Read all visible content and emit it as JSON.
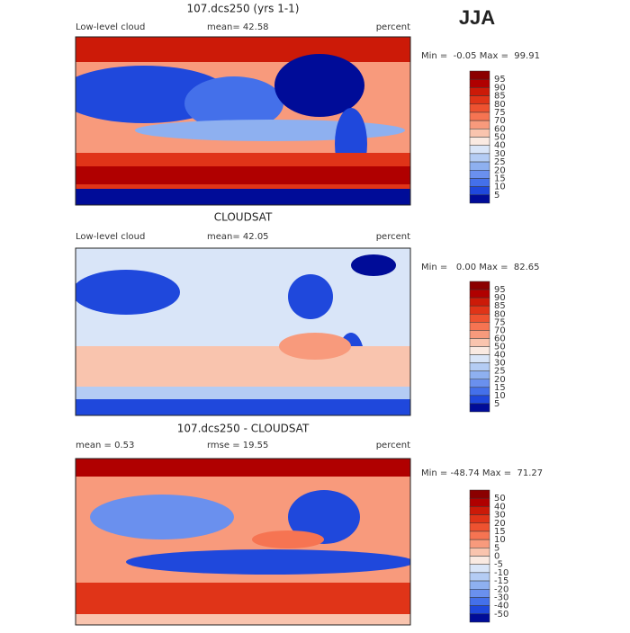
{
  "header": {
    "season": "JJA"
  },
  "panels": [
    {
      "title": "107.dcs250 (yrs 1-1)",
      "left_label": "Low-level cloud",
      "stat_label": "mean=  42.58",
      "units": "percent",
      "minmax": "Min =  -0.05 Max =  99.91",
      "colorbar": {
        "levels": [
          95,
          90,
          85,
          80,
          75,
          70,
          60,
          50,
          40,
          30,
          25,
          20,
          15,
          10,
          5
        ],
        "colors": [
          "#8b0000",
          "#b00000",
          "#cc1a08",
          "#e03418",
          "#ee5230",
          "#f67452",
          "#f89a7c",
          "#f9c4ae",
          "#faeae2",
          "#d9e5f8",
          "#b4ccf4",
          "#8eb0f0",
          "#6a90ee",
          "#4470ea",
          "#1f48dc",
          "#000c98"
        ]
      }
    },
    {
      "title": "CLOUDSAT",
      "left_label": "Low-level cloud",
      "stat_label": "mean=  42.05",
      "units": "percent",
      "minmax": "Min =   0.00 Max =  82.65",
      "colorbar": {
        "levels": [
          95,
          90,
          85,
          80,
          75,
          70,
          60,
          50,
          40,
          30,
          25,
          20,
          15,
          10,
          5
        ],
        "colors": [
          "#8b0000",
          "#b00000",
          "#cc1a08",
          "#e03418",
          "#ee5230",
          "#f67452",
          "#f89a7c",
          "#f9c4ae",
          "#faeae2",
          "#d9e5f8",
          "#b4ccf4",
          "#8eb0f0",
          "#6a90ee",
          "#4470ea",
          "#1f48dc",
          "#000c98"
        ]
      }
    },
    {
      "title": "107.dcs250 - CLOUDSAT",
      "left_label": "mean =   0.53",
      "stat_label": "rmse =  19.55",
      "units": "percent",
      "minmax": "Min = -48.74 Max =  71.27",
      "colorbar": {
        "levels": [
          50,
          40,
          30,
          20,
          15,
          10,
          5,
          0,
          -5,
          -10,
          -15,
          -20,
          -30,
          -40,
          -50
        ],
        "colors": [
          "#8b0000",
          "#b00000",
          "#cc1a08",
          "#e03418",
          "#ee5230",
          "#f67452",
          "#f89a7c",
          "#f9c4ae",
          "#faeae2",
          "#d9e5f8",
          "#b4ccf4",
          "#8eb0f0",
          "#6a90ee",
          "#4470ea",
          "#1f48dc",
          "#000c98"
        ]
      }
    }
  ]
}
